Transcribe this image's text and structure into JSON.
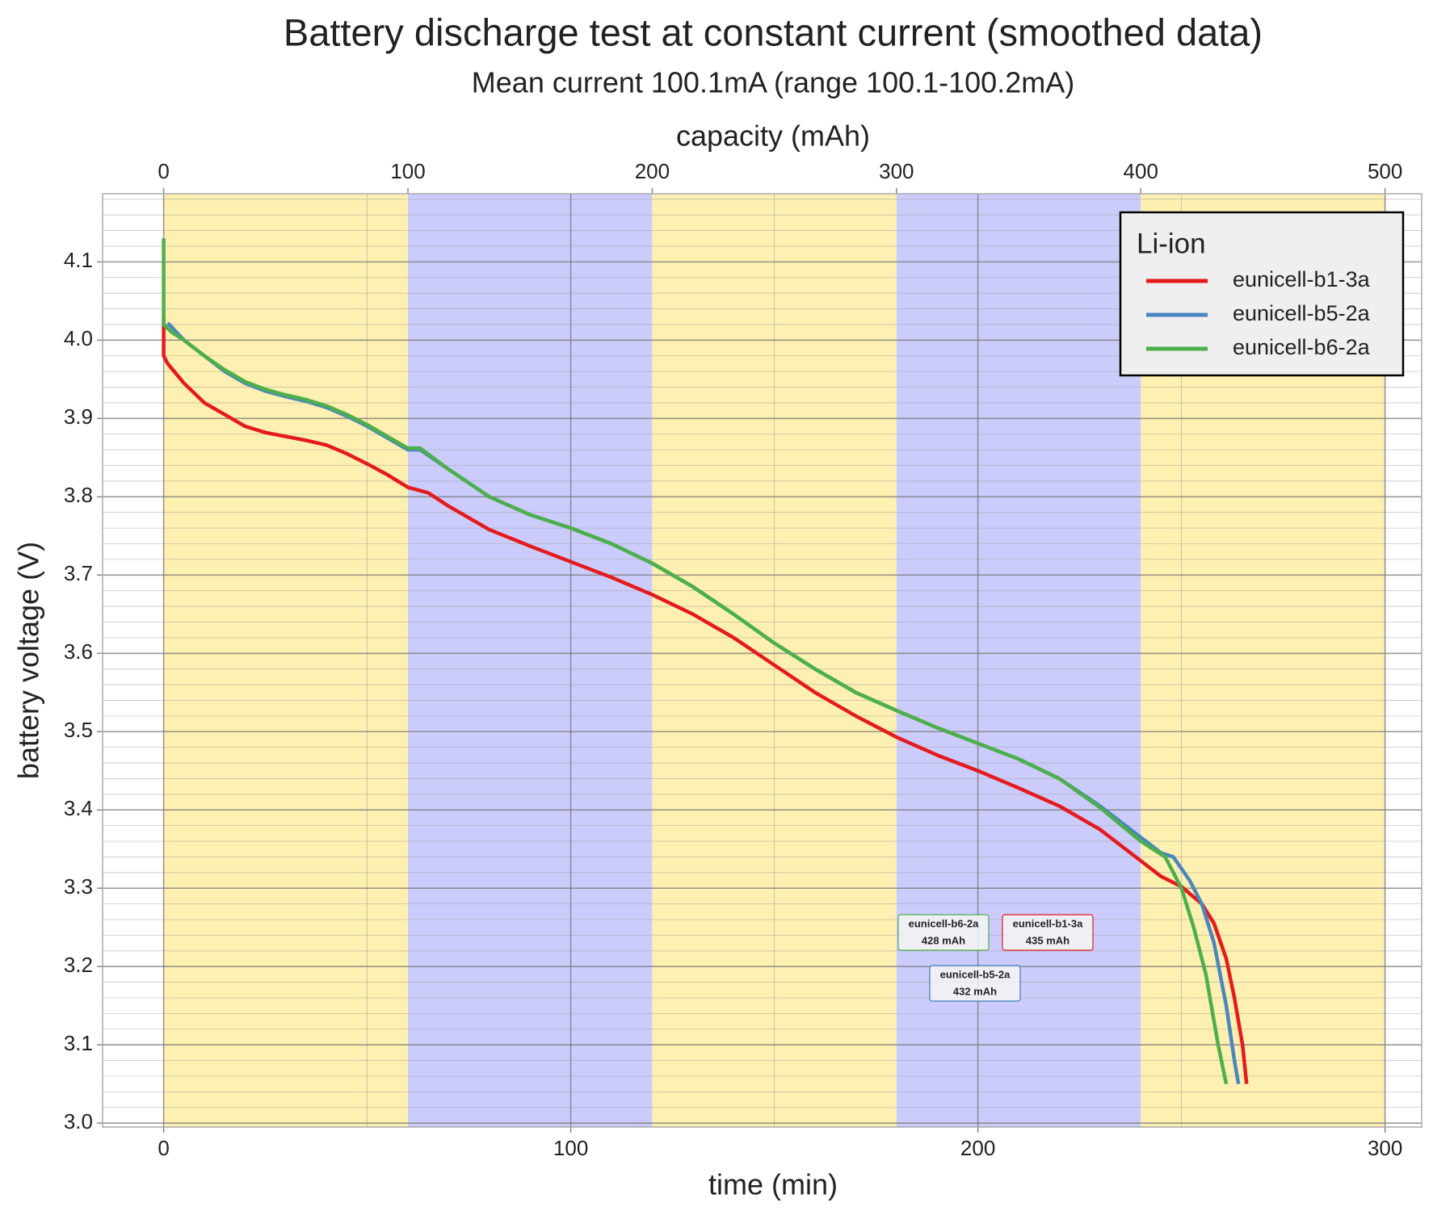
{
  "chart_data": {
    "type": "line",
    "title": "Battery discharge test at constant current (smoothed data)",
    "subtitle": "Mean current 100.1mA (range 100.1-100.2mA)",
    "xlabel": "time (min)",
    "ylabel": "battery voltage (V)",
    "x2label": "capacity (mAh)",
    "xlim": [
      -15,
      309
    ],
    "xticks": [
      0,
      100,
      200,
      300
    ],
    "x2lim": [
      -25,
      515
    ],
    "x2ticks": [
      0,
      100,
      200,
      300,
      400,
      500
    ],
    "ylim": [
      2.995,
      4.187
    ],
    "yticks": [
      {
        "value": 3,
        "label": "3.0"
      },
      3.1,
      3.2,
      3.3,
      3.4,
      3.5,
      3.6,
      3.7,
      3.8,
      3.9,
      {
        "value": 4,
        "label": "4.0"
      },
      4.1
    ],
    "grid": true,
    "bands": [
      {
        "from": 0,
        "to": 60,
        "color": "#fdf0b0"
      },
      {
        "from": 60,
        "to": 120,
        "color": "#ccccfc"
      },
      {
        "from": 120,
        "to": 180,
        "color": "#fdf0b0"
      },
      {
        "from": 180,
        "to": 240,
        "color": "#ccccfc"
      },
      {
        "from": 240,
        "to": 300,
        "color": "#fdf0b0"
      }
    ],
    "legend": {
      "title": "Li-ion",
      "position": "top-right"
    },
    "series": [
      {
        "name": "eunicell-b1-3a",
        "color": "#e41a1c",
        "x": [
          0,
          0,
          1,
          5,
          10,
          15,
          20,
          25,
          30,
          35,
          40,
          45,
          50,
          55,
          60,
          65,
          70,
          80,
          90,
          100,
          110,
          120,
          130,
          140,
          150,
          160,
          170,
          180,
          190,
          200,
          210,
          220,
          230,
          240,
          245,
          250,
          255,
          258,
          261,
          263,
          265,
          266
        ],
        "values": [
          4.03,
          3.98,
          3.97,
          3.945,
          3.92,
          3.905,
          3.89,
          3.882,
          3.877,
          3.872,
          3.866,
          3.855,
          3.842,
          3.828,
          3.812,
          3.805,
          3.788,
          3.758,
          3.737,
          3.717,
          3.697,
          3.675,
          3.65,
          3.62,
          3.585,
          3.55,
          3.52,
          3.493,
          3.47,
          3.45,
          3.428,
          3.405,
          3.375,
          3.335,
          3.315,
          3.302,
          3.28,
          3.255,
          3.21,
          3.16,
          3.1,
          3.05
        ]
      },
      {
        "name": "eunicell-b5-2a",
        "color": "#4a86c0",
        "x": [
          1,
          5,
          10,
          15,
          20,
          25,
          30,
          35,
          40,
          45,
          50,
          55,
          60,
          63,
          70,
          80,
          90,
          100,
          110,
          120,
          130,
          140,
          150,
          160,
          170,
          180,
          190,
          200,
          210,
          220,
          230,
          240,
          245,
          248,
          252,
          255,
          258,
          261,
          263,
          264
        ],
        "values": [
          4.022,
          4.0,
          3.98,
          3.96,
          3.945,
          3.935,
          3.928,
          3.922,
          3.914,
          3.903,
          3.89,
          3.875,
          3.86,
          3.86,
          3.835,
          3.8,
          3.777,
          3.76,
          3.74,
          3.715,
          3.685,
          3.65,
          3.613,
          3.58,
          3.55,
          3.527,
          3.505,
          3.485,
          3.465,
          3.44,
          3.405,
          3.365,
          3.345,
          3.34,
          3.31,
          3.28,
          3.23,
          3.15,
          3.08,
          3.05
        ]
      },
      {
        "name": "eunicell-b6-2a",
        "color": "#4daf4a",
        "x": [
          0,
          0,
          2,
          5,
          10,
          15,
          20,
          25,
          30,
          35,
          40,
          45,
          50,
          55,
          60,
          63,
          70,
          80,
          90,
          100,
          110,
          120,
          130,
          140,
          150,
          160,
          170,
          180,
          190,
          200,
          210,
          220,
          230,
          240,
          246,
          250,
          253,
          256,
          259,
          261
        ],
        "values": [
          4.13,
          4.02,
          4.01,
          4.0,
          3.98,
          3.962,
          3.947,
          3.937,
          3.93,
          3.924,
          3.916,
          3.905,
          3.892,
          3.877,
          3.862,
          3.862,
          3.835,
          3.8,
          3.777,
          3.76,
          3.74,
          3.715,
          3.685,
          3.65,
          3.613,
          3.58,
          3.55,
          3.527,
          3.505,
          3.485,
          3.465,
          3.44,
          3.403,
          3.36,
          3.34,
          3.3,
          3.25,
          3.19,
          3.1,
          3.05
        ]
      }
    ],
    "annotations": [
      {
        "lines": [
          "eunicell-b6-2a",
          "428 mAh"
        ],
        "color": "#4daf4a"
      },
      {
        "lines": [
          "eunicell-b1-3a",
          "435 mAh"
        ],
        "color": "#e41a1c"
      },
      {
        "lines": [
          "eunicell-b5-2a",
          "432 mAh"
        ],
        "color": "#377eb8"
      }
    ]
  }
}
